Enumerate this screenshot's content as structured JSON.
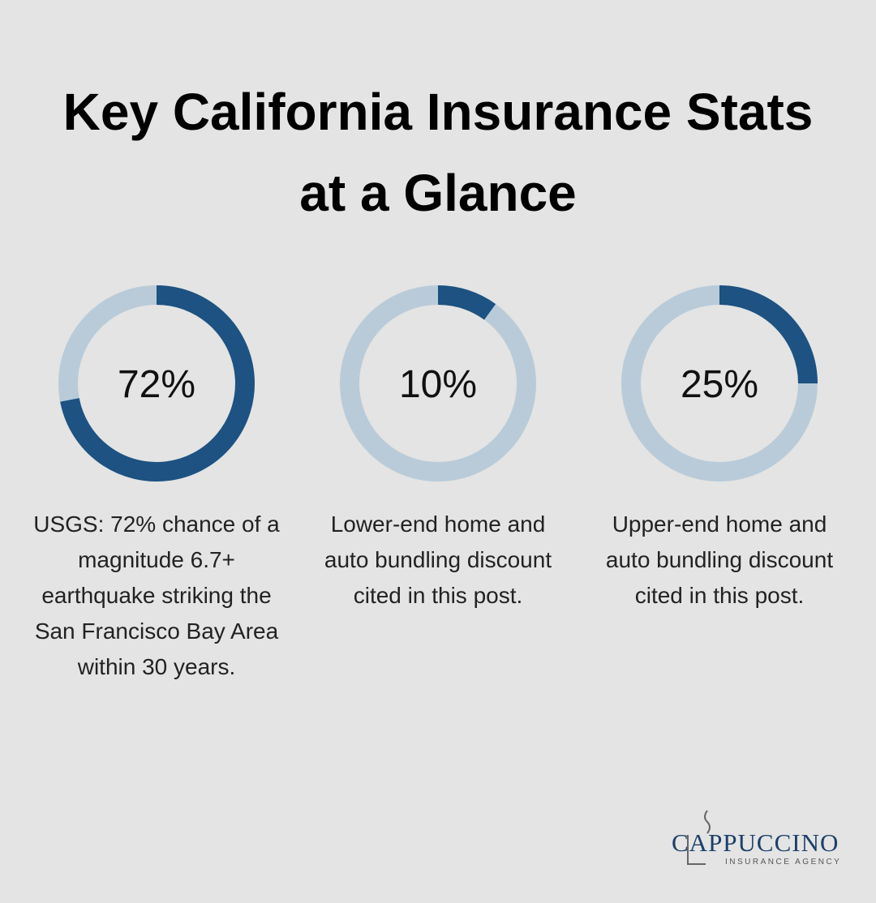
{
  "title": "Key California Insurance Stats at a Glance",
  "chart_data": [
    {
      "type": "donut",
      "values": [
        72
      ],
      "value_labels": [
        "72%"
      ],
      "color": "#1d5282",
      "track_color": "#b9cbd9",
      "caption": "USGS: 72% chance of a magnitude 6.7+ earthquake striking the San Francisco Bay Area within 30 years."
    },
    {
      "type": "donut",
      "values": [
        10
      ],
      "value_labels": [
        "10%"
      ],
      "color": "#1d5282",
      "track_color": "#b9cbd9",
      "caption": "Lower-end home and auto bundling discount cited in this post."
    },
    {
      "type": "donut",
      "values": [
        25
      ],
      "value_labels": [
        "25%"
      ],
      "color": "#1d5282",
      "track_color": "#b9cbd9",
      "caption": "Upper-end home and auto bundling discount cited in this post."
    }
  ],
  "logo": {
    "name": "CAPPUCCINO",
    "tagline": "INSURANCE AGENCY"
  }
}
